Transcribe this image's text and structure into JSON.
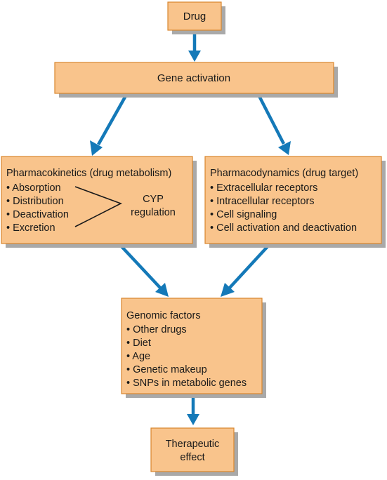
{
  "nodes": {
    "drug": {
      "label": "Drug"
    },
    "gene_activation": {
      "label": "Gene activation"
    },
    "pharmacokinetics": {
      "title": "Pharmacokinetics (drug metabolism)",
      "items": [
        "• Absorption",
        "• Distribution",
        "• Deactivation",
        "• Excretion"
      ],
      "cyp_line1": "CYP",
      "cyp_line2": "regulation"
    },
    "pharmacodynamics": {
      "title": "Pharmacodynamics (drug target)",
      "items": [
        "• Extracellular receptors",
        "• Intracellular receptors",
        "• Cell signaling",
        "• Cell activation and deactivation"
      ]
    },
    "genomic_factors": {
      "title": "Genomic factors",
      "items": [
        "• Other drugs",
        "• Diet",
        "• Age",
        "• Genetic makeup",
        "• SNPs in metabolic genes"
      ]
    },
    "therapeutic_effect": {
      "line1": "Therapeutic",
      "line2": "effect"
    }
  },
  "colors": {
    "box_fill": "#f9c48c",
    "box_border": "#d8862d",
    "arrow": "#1479b8",
    "shadow": "#a9a9a9"
  }
}
